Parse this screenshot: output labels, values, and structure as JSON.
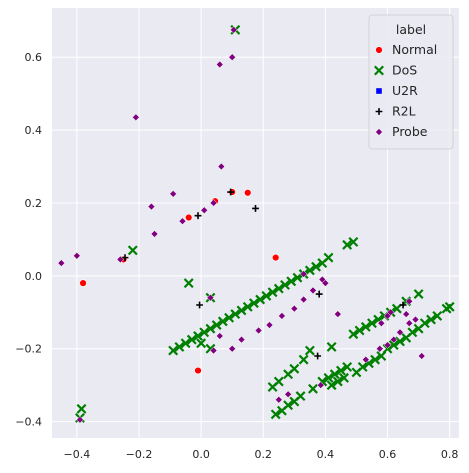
{
  "chart_data": {
    "type": "scatter",
    "title": "",
    "xlabel": "",
    "ylabel": "",
    "xlim": [
      -0.48,
      0.83
    ],
    "ylim": [
      -0.445,
      0.735
    ],
    "x_ticks": [
      -0.4,
      -0.2,
      0.0,
      0.2,
      0.4,
      0.6,
      0.8
    ],
    "x_tick_labels": [
      "−0.4",
      "−0.2",
      "0.0",
      "0.2",
      "0.4",
      "0.6",
      "0.8"
    ],
    "y_ticks": [
      -0.4,
      -0.2,
      0.0,
      0.2,
      0.4,
      0.6
    ],
    "y_tick_labels": [
      "−0.4",
      "−0.2",
      "0.0",
      "0.2",
      "0.4",
      "0.6"
    ],
    "grid": true,
    "background": "#eaeaf2",
    "legend": {
      "title": "label",
      "placement": "top-right"
    },
    "series": [
      {
        "name": "Normal",
        "marker": "circle",
        "color": "#ff0000",
        "points": [
          [
            -0.38,
            -0.02
          ],
          [
            -0.25,
            0.045
          ],
          [
            -0.04,
            0.16
          ],
          [
            0.045,
            0.205
          ],
          [
            0.1,
            0.23
          ],
          [
            0.15,
            0.228
          ],
          [
            0.24,
            0.05
          ],
          [
            -0.01,
            -0.26
          ]
        ]
      },
      {
        "name": "DoS",
        "marker": "x",
        "color": "#008000",
        "points": [
          [
            0.11,
            0.675
          ],
          [
            -0.22,
            0.07
          ],
          [
            -0.04,
            -0.02
          ],
          [
            0.03,
            -0.06
          ],
          [
            -0.385,
            -0.365
          ],
          [
            -0.39,
            -0.39
          ],
          [
            -0.09,
            -0.205
          ],
          [
            -0.07,
            -0.195
          ],
          [
            -0.05,
            -0.185
          ],
          [
            -0.03,
            -0.175
          ],
          [
            -0.01,
            -0.165
          ],
          [
            0.01,
            -0.155
          ],
          [
            0.03,
            -0.145
          ],
          [
            0.05,
            -0.135
          ],
          [
            0.07,
            -0.125
          ],
          [
            0.09,
            -0.115
          ],
          [
            0.11,
            -0.105
          ],
          [
            0.13,
            -0.095
          ],
          [
            0.15,
            -0.085
          ],
          [
            0.17,
            -0.075
          ],
          [
            0.19,
            -0.065
          ],
          [
            0.21,
            -0.055
          ],
          [
            0.23,
            -0.045
          ],
          [
            0.25,
            -0.035
          ],
          [
            0.27,
            -0.025
          ],
          [
            0.29,
            -0.015
          ],
          [
            0.31,
            -0.005
          ],
          [
            0.33,
            0.005
          ],
          [
            0.35,
            0.015
          ],
          [
            0.37,
            0.025
          ],
          [
            0.39,
            0.035
          ],
          [
            0.41,
            0.05
          ],
          [
            0.47,
            0.085
          ],
          [
            0.49,
            0.093
          ],
          [
            0.0,
            -0.185
          ],
          [
            0.03,
            -0.2
          ],
          [
            0.23,
            -0.305
          ],
          [
            0.25,
            -0.29
          ],
          [
            0.28,
            -0.27
          ],
          [
            0.3,
            -0.255
          ],
          [
            0.33,
            -0.23
          ],
          [
            0.35,
            -0.205
          ],
          [
            0.42,
            -0.195
          ],
          [
            0.24,
            -0.38
          ],
          [
            0.26,
            -0.37
          ],
          [
            0.28,
            -0.355
          ],
          [
            0.3,
            -0.345
          ],
          [
            0.32,
            -0.33
          ],
          [
            0.36,
            -0.31
          ],
          [
            0.39,
            -0.29
          ],
          [
            0.41,
            -0.28
          ],
          [
            0.43,
            -0.27
          ],
          [
            0.45,
            -0.26
          ],
          [
            0.47,
            -0.25
          ],
          [
            0.49,
            -0.16
          ],
          [
            0.51,
            -0.15
          ],
          [
            0.53,
            -0.14
          ],
          [
            0.55,
            -0.13
          ],
          [
            0.57,
            -0.12
          ],
          [
            0.59,
            -0.11
          ],
          [
            0.61,
            -0.1
          ],
          [
            0.63,
            -0.09
          ],
          [
            0.66,
            -0.07
          ],
          [
            0.7,
            -0.05
          ],
          [
            0.42,
            -0.3
          ],
          [
            0.44,
            -0.29
          ],
          [
            0.46,
            -0.28
          ],
          [
            0.5,
            -0.265
          ],
          [
            0.52,
            -0.25
          ],
          [
            0.54,
            -0.24
          ],
          [
            0.56,
            -0.23
          ],
          [
            0.58,
            -0.22
          ],
          [
            0.6,
            -0.2
          ],
          [
            0.62,
            -0.19
          ],
          [
            0.64,
            -0.18
          ],
          [
            0.66,
            -0.17
          ],
          [
            0.68,
            -0.155
          ],
          [
            0.7,
            -0.145
          ],
          [
            0.72,
            -0.13
          ],
          [
            0.74,
            -0.12
          ],
          [
            0.76,
            -0.11
          ],
          [
            0.79,
            -0.09
          ],
          [
            0.8,
            -0.085
          ]
        ]
      },
      {
        "name": "U2R",
        "marker": "square",
        "color": "#0000ff",
        "points": []
      },
      {
        "name": "R2L",
        "marker": "plus",
        "color": "#000000",
        "points": [
          [
            -0.245,
            0.05
          ],
          [
            -0.01,
            0.165
          ],
          [
            0.095,
            0.23
          ],
          [
            0.175,
            0.185
          ],
          [
            -0.005,
            -0.08
          ],
          [
            0.375,
            -0.22
          ],
          [
            0.38,
            -0.05
          ],
          [
            0.65,
            -0.08
          ]
        ]
      },
      {
        "name": "Probe",
        "marker": "diamond",
        "color": "#800080",
        "points": [
          [
            0.105,
            0.675
          ],
          [
            0.1,
            0.6
          ],
          [
            0.06,
            0.58
          ],
          [
            -0.21,
            0.435
          ],
          [
            0.065,
            0.3
          ],
          [
            -0.09,
            0.225
          ],
          [
            -0.16,
            0.19
          ],
          [
            -0.15,
            0.115
          ],
          [
            -0.06,
            0.15
          ],
          [
            0.04,
            0.2
          ],
          [
            0.01,
            0.18
          ],
          [
            -0.26,
            0.045
          ],
          [
            -0.4,
            0.055
          ],
          [
            -0.45,
            0.035
          ],
          [
            -0.39,
            -0.395
          ],
          [
            0.03,
            -0.06
          ],
          [
            0.04,
            -0.205
          ],
          [
            0.06,
            -0.165
          ],
          [
            0.1,
            -0.2
          ],
          [
            0.13,
            -0.175
          ],
          [
            0.185,
            -0.15
          ],
          [
            0.22,
            -0.135
          ],
          [
            0.26,
            -0.11
          ],
          [
            0.3,
            -0.09
          ],
          [
            0.33,
            -0.065
          ],
          [
            0.36,
            -0.04
          ],
          [
            0.39,
            -0.01
          ],
          [
            0.33,
            0.005
          ],
          [
            0.4,
            -0.02
          ],
          [
            0.44,
            -0.105
          ],
          [
            0.385,
            -0.3
          ],
          [
            0.53,
            -0.23
          ],
          [
            0.575,
            -0.2
          ],
          [
            0.6,
            -0.19
          ],
          [
            0.62,
            -0.175
          ],
          [
            0.64,
            -0.155
          ],
          [
            0.67,
            -0.13
          ],
          [
            0.69,
            -0.12
          ],
          [
            0.71,
            -0.22
          ],
          [
            0.66,
            -0.105
          ],
          [
            0.67,
            -0.07
          ],
          [
            0.6,
            -0.11
          ],
          [
            0.58,
            -0.13
          ],
          [
            0.61,
            -0.1
          ],
          [
            0.25,
            -0.34
          ],
          [
            0.28,
            -0.325
          ]
        ]
      }
    ]
  }
}
